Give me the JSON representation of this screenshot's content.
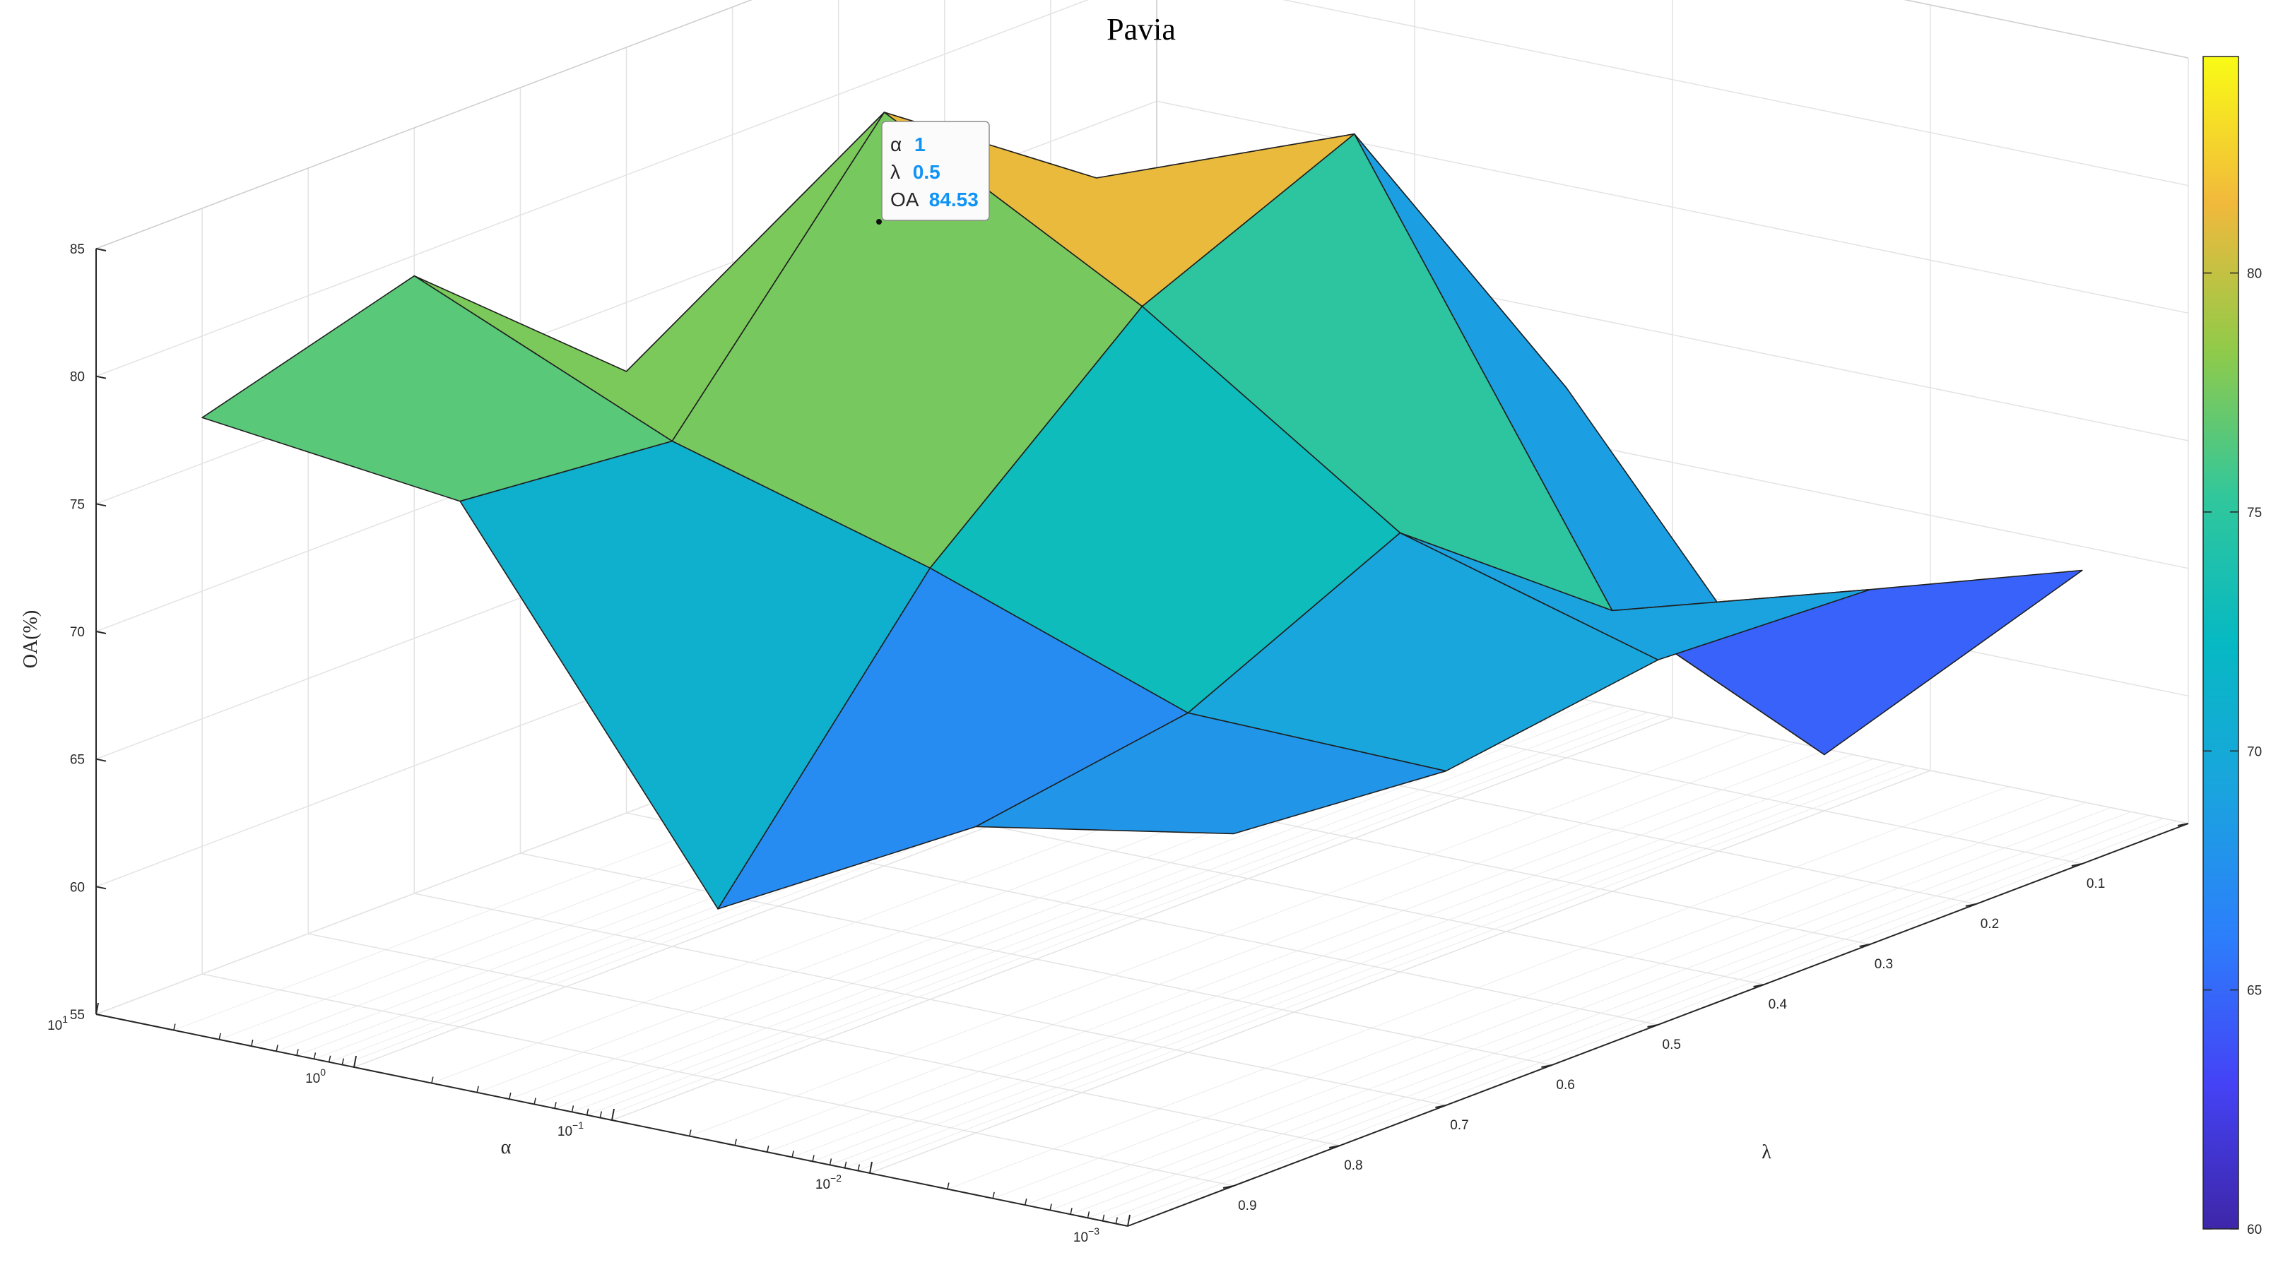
{
  "chart_data": {
    "type": "surface",
    "title": "Pavia",
    "xlabel": "α",
    "ylabel": "λ",
    "zlabel": "OA(%)",
    "alpha_ticks": [
      "10^1",
      "10^0",
      "10^-1",
      "10^-2",
      "10^-3"
    ],
    "alpha_values": [
      10,
      1,
      0.1,
      0.01,
      0.001
    ],
    "lambda_ticks": [
      "0.9",
      "0.8",
      "0.7",
      "0.6",
      "0.5",
      "0.4",
      "0.3",
      "0.2",
      "0.1"
    ],
    "lambda_grid": [
      0.9,
      0.7,
      0.5,
      0.3,
      0.1
    ],
    "z_ticks": [
      "55",
      "60",
      "65",
      "70",
      "75",
      "80",
      "85"
    ],
    "zlim": [
      55,
      85
    ],
    "colorbar_ticks": [
      "60",
      "65",
      "70",
      "75",
      "80"
    ],
    "colorbar_range": [
      60,
      84.53
    ],
    "grid": true,
    "colormap": "parula",
    "OA": [
      [
        76.8,
        79.2,
        72.3,
        67.5,
        63.9
      ],
      [
        75.6,
        74.8,
        84.53,
        78.8,
        69.0
      ],
      [
        61.7,
        71.9,
        79.0,
        82.6,
        69.5
      ],
      [
        67.0,
        68.3,
        72.2,
        66.0,
        57.2
      ],
      [
        68.8,
        68.1,
        69.3,
        68.9,
        66.5
      ]
    ],
    "datatip": {
      "alpha_label": "α",
      "alpha_value": "1",
      "lambda_label": "λ",
      "lambda_value": "0.5",
      "oa_label": "OA",
      "oa_value": "84.53"
    }
  }
}
